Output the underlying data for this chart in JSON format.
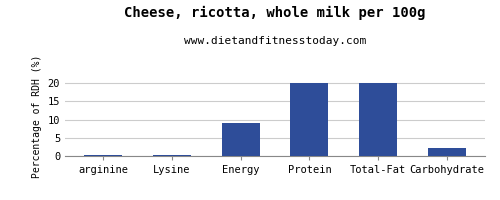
{
  "title": "Cheese, ricotta, whole milk per 100g",
  "subtitle": "www.dietandfitnesstoday.com",
  "categories": [
    "arginine",
    "Lysine",
    "Energy",
    "Protein",
    "Total-Fat",
    "Carbohydrate"
  ],
  "values": [
    0.3,
    0.3,
    9.0,
    20.0,
    20.0,
    2.2
  ],
  "bar_color": "#2e4d99",
  "ylabel": "Percentage of RDH (%)",
  "ylim": [
    0,
    22
  ],
  "yticks": [
    0,
    5,
    10,
    15,
    20
  ],
  "background_color": "#ffffff",
  "plot_bg_color": "#ffffff",
  "grid_color": "#cccccc",
  "title_fontsize": 10,
  "subtitle_fontsize": 8,
  "ylabel_fontsize": 7,
  "xlabel_fontsize": 7.5,
  "tick_fontsize": 7.5
}
